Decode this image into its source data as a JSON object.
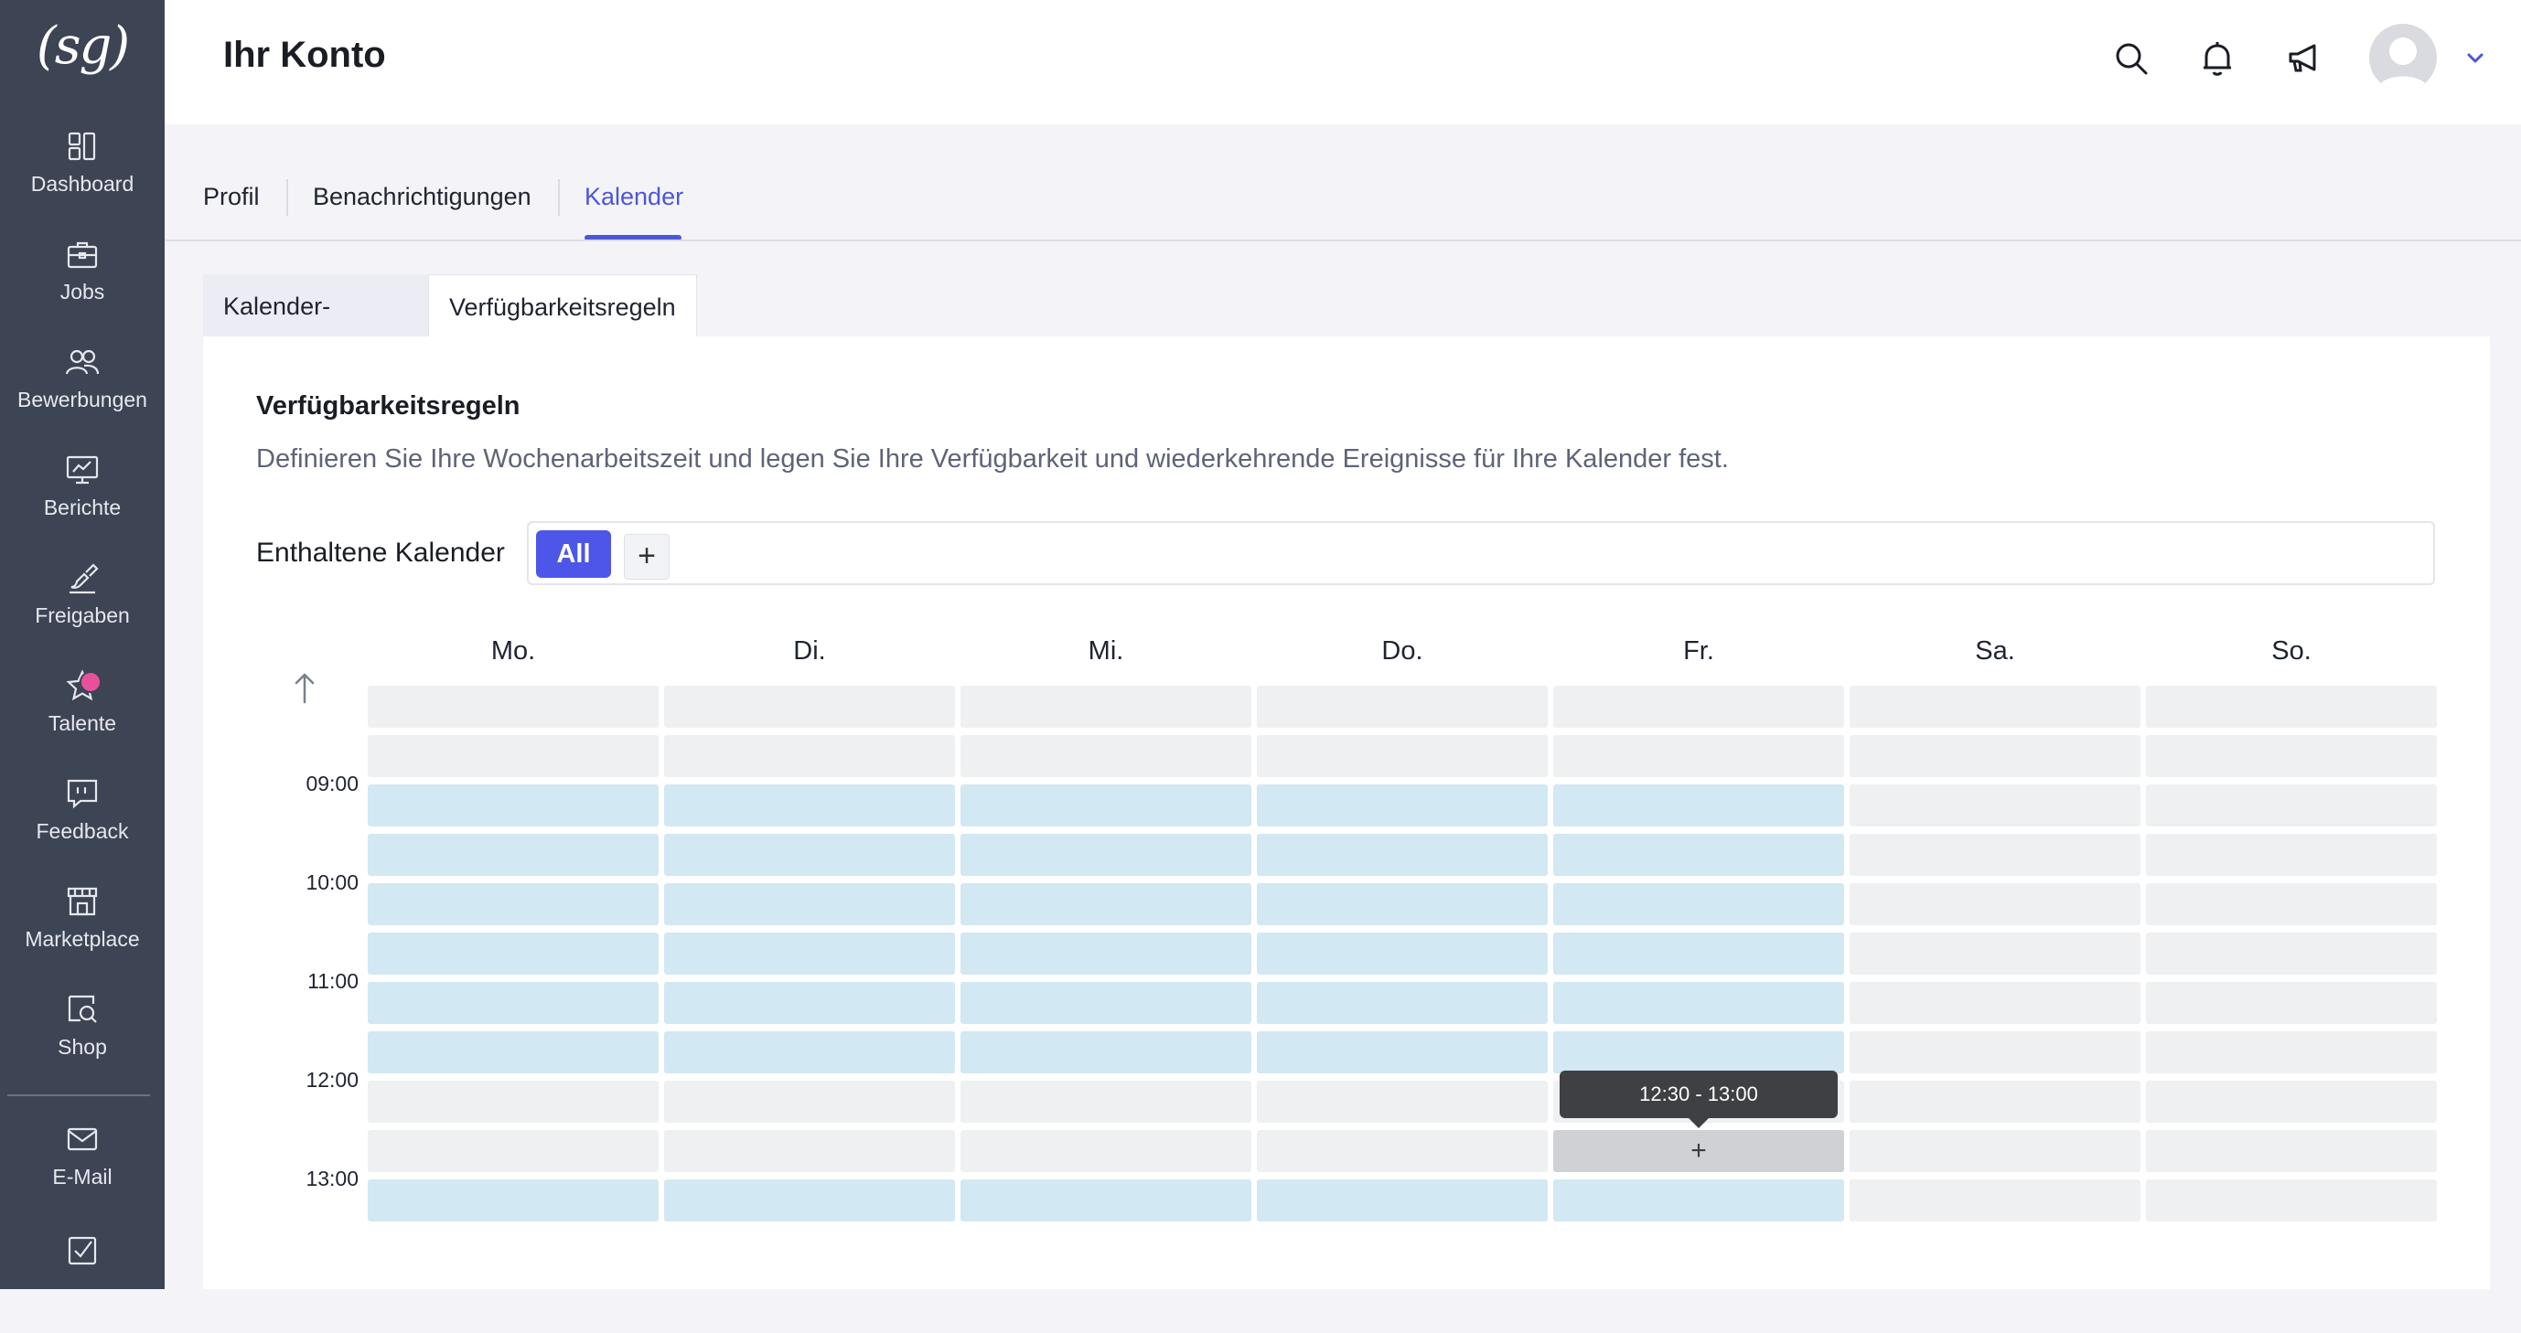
{
  "sidebar": {
    "logo": "(sg)",
    "items": [
      {
        "label": "Dashboard",
        "icon": "dashboard-icon"
      },
      {
        "label": "Jobs",
        "icon": "briefcase-icon"
      },
      {
        "label": "Bewerbungen",
        "icon": "users-icon"
      },
      {
        "label": "Berichte",
        "icon": "chart-board-icon"
      },
      {
        "label": "Freigaben",
        "icon": "brush-check-icon"
      },
      {
        "label": "Talente",
        "icon": "star-icon"
      },
      {
        "label": "Feedback",
        "icon": "speech-bubble-icon"
      },
      {
        "label": "Marketplace",
        "icon": "storefront-icon"
      },
      {
        "label": "Shop",
        "icon": "shop-search-icon"
      },
      {
        "label": "E-Mail",
        "icon": "mail-icon"
      }
    ],
    "bottom_icon": "checkbox-icon"
  },
  "header": {
    "title": "Ihr Konto",
    "icons": [
      "search-icon",
      "bell-icon",
      "megaphone-icon",
      "avatar",
      "chevron-down-icon"
    ]
  },
  "tabs": [
    {
      "label": "Profil",
      "active": false
    },
    {
      "label": "Benachrichtigungen",
      "active": false
    },
    {
      "label": "Kalender",
      "active": true
    }
  ],
  "subtabs": [
    {
      "label": "Kalender-Konten",
      "active": false
    },
    {
      "label": "Verfügbarkeitsregeln",
      "active": true
    }
  ],
  "section": {
    "title": "Verfügbarkeitsregeln",
    "description": "Definieren Sie Ihre Wochenarbeitszeit und legen Sie Ihre Verfügbarkeit und wiederkehrende Ereignisse für Ihre Kalender fest."
  },
  "calendars": {
    "label": "Enthaltene Kalender",
    "chip": "All",
    "add_symbol": "+"
  },
  "schedule": {
    "days": [
      "Mo.",
      "Di.",
      "Mi.",
      "Do.",
      "Fr.",
      "Sa.",
      "So."
    ],
    "times": [
      "09:00",
      "10:00",
      "11:00",
      "12:00",
      "13:00"
    ],
    "available_rows": [
      0,
      0,
      1,
      1,
      1,
      1,
      1,
      1,
      0,
      0,
      1
    ],
    "available_days": [
      1,
      1,
      1,
      1,
      1,
      0,
      0
    ],
    "hover_cell": {
      "day": 4,
      "row": 9,
      "symbol": "+"
    },
    "tooltip": "12:30 - 13:00"
  },
  "colors": {
    "accent": "#4d56e8",
    "available": "#d2e8f3",
    "free": "#eef0f1",
    "sidebar": "#3d4454"
  }
}
